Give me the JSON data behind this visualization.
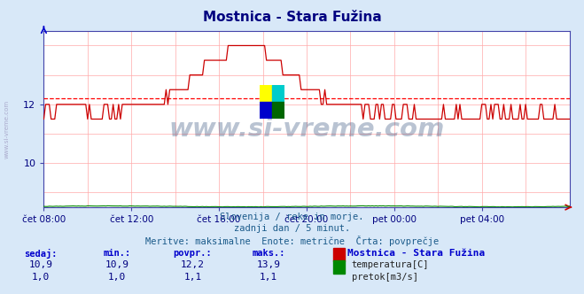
{
  "title": "Mostnica - Stara Fužina",
  "title_color": "#000080",
  "bg_color": "#d8e8f8",
  "plot_bg_color": "#ffffff",
  "grid_color": "#ffaaaa",
  "x_labels": [
    "čet 08:00",
    "čet 12:00",
    "čet 16:00",
    "čet 20:00",
    "pet 00:00",
    "pet 04:00"
  ],
  "x_ticks_norm": [
    0.0,
    0.1667,
    0.3333,
    0.5,
    0.6667,
    0.8333
  ],
  "y_min": 8.5,
  "y_max": 14.5,
  "y_ticks": [
    10,
    12
  ],
  "avg_line_y": 12.2,
  "avg_line_color": "#ff0000",
  "temp_line_color": "#cc0000",
  "flow_line_color": "#008800",
  "watermark_text": "www.si-vreme.com",
  "watermark_color": "#1a3a6a",
  "watermark_alpha": 0.3,
  "subtitle_lines": [
    "Slovenija / reke in morje.",
    "zadnji dan / 5 minut.",
    "Meritve: maksimalne  Enote: metrične  Črta: povprečje"
  ],
  "subtitle_color": "#1a5a8a",
  "table_headers": [
    "sedaj:",
    "min.:",
    "povpr.:",
    "maks.:"
  ],
  "table_header_color": "#0000cc",
  "table_row1": [
    "10,9",
    "10,9",
    "12,2",
    "13,9"
  ],
  "table_row2": [
    "1,0",
    "1,0",
    "1,1",
    "1,1"
  ],
  "table_color": "#000080",
  "station_name": "Mostnica - Stara Fužina",
  "station_name_color": "#0000cc",
  "legend_temp_color": "#cc0000",
  "legend_flow_color": "#008800",
  "legend_temp_label": "temperatura[C]",
  "legend_flow_label": "pretok[m3/s]",
  "num_points": 289,
  "logo_colors": [
    "#ffff00",
    "#00cccc",
    "#0000cc",
    "#006600"
  ]
}
